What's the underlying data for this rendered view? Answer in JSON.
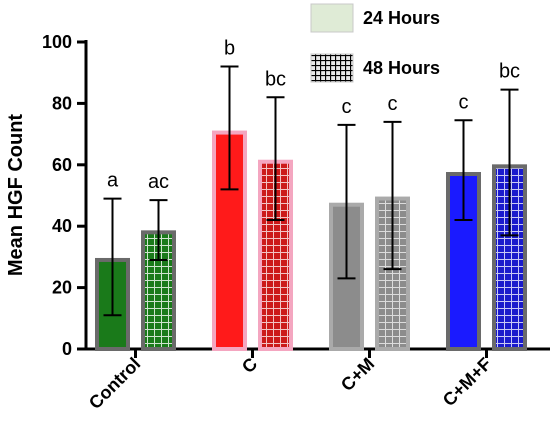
{
  "chart_data": {
    "type": "bar",
    "ylabel": "Mean HGF Count",
    "xlabel": "",
    "ylim": [
      0,
      100
    ],
    "yticks": [
      0,
      20,
      40,
      60,
      80,
      100
    ],
    "grid": false,
    "legend_position": "top-right",
    "categories": [
      "Control",
      "C",
      "C+M",
      "C+M+F"
    ],
    "category_colors": [
      "#1a7a1a",
      "#ff1a1a",
      "#8c8c8c",
      "#1a1aff"
    ],
    "series": [
      {
        "name": "24 Hours",
        "pattern": "solid",
        "values": [
          29,
          70.5,
          47,
          57
        ],
        "error_low": [
          11,
          52,
          23,
          42
        ],
        "error_high": [
          49,
          92,
          73,
          74.5
        ],
        "significance": [
          "a",
          "b",
          "c",
          "c"
        ]
      },
      {
        "name": "48 Hours",
        "pattern": "grid",
        "values": [
          38,
          61,
          49,
          59.5
        ],
        "error_low": [
          29,
          42,
          26,
          37
        ],
        "error_high": [
          48.5,
          82,
          74,
          84.5
        ],
        "significance": [
          "ac",
          "bc",
          "c",
          "bc"
        ]
      }
    ]
  }
}
